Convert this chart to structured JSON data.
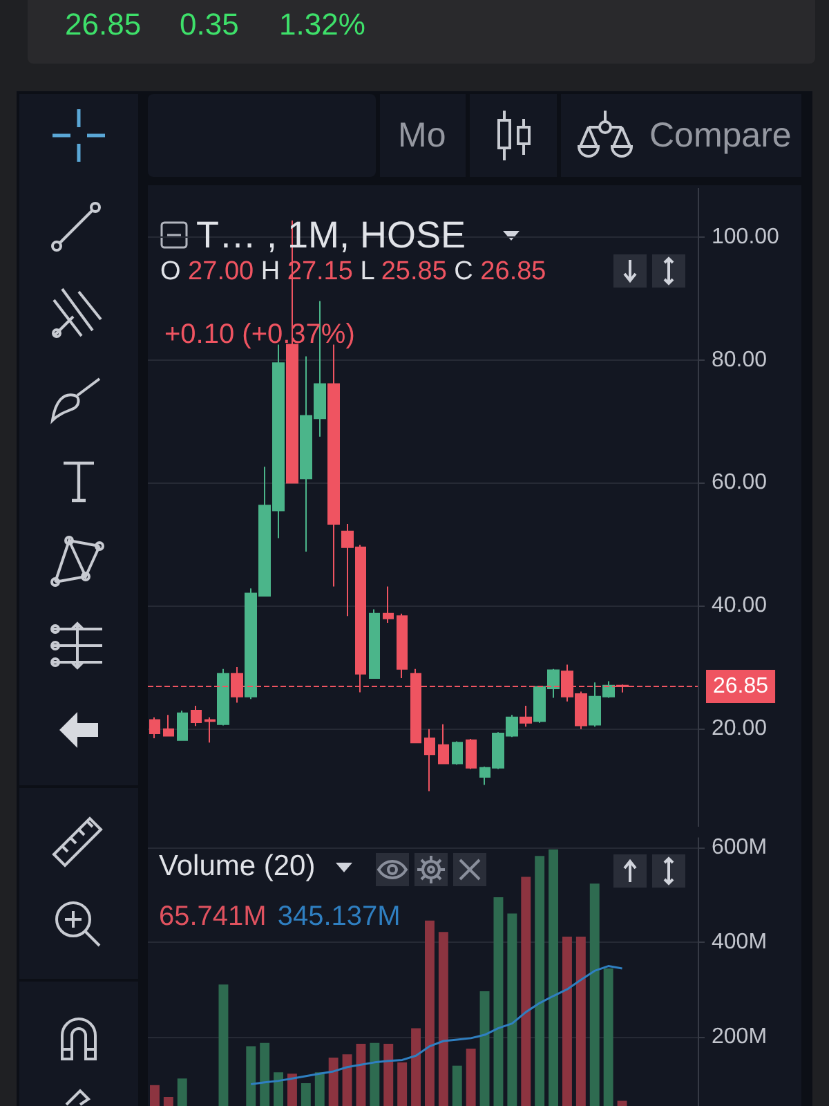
{
  "chart_data": [
    {
      "type": "candlestick",
      "title": "T… , 1M, HOSE",
      "subtitle": "O 27.00 H 27.15 L 25.85 C 26.85",
      "annotations": [
        "26.85",
        "0.35",
        "1.32%",
        "Mo",
        "Compare",
        "+0.10 (+0.37%)"
      ],
      "categories": [
        null,
        null,
        null,
        null,
        null,
        null,
        null,
        null,
        null,
        null,
        null,
        null,
        null,
        null,
        null,
        null,
        null,
        null,
        null,
        null,
        null,
        null,
        null,
        null,
        null,
        null,
        null,
        null,
        null,
        null,
        null,
        null,
        null,
        null,
        null,
        null,
        null,
        null,
        null,
        null
      ],
      "ohlc": [
        [
          21.4,
          21.8,
          18.4,
          19.2
        ],
        [
          19.9,
          22.2,
          18.7,
          18.8
        ],
        [
          18.1,
          22.9,
          18.1,
          22.5
        ],
        [
          22.9,
          23.7,
          20.4,
          21.0
        ],
        [
          21.4,
          21.8,
          17.7,
          21.2
        ],
        [
          20.7,
          29.7,
          20.5,
          28.9
        ],
        [
          28.9,
          30.0,
          24.2,
          25.2
        ],
        [
          25.2,
          42.8,
          24.8,
          42.0
        ],
        [
          41.6,
          62.6,
          41.6,
          56.3
        ],
        [
          55.5,
          82.5,
          51.0,
          79.5
        ],
        [
          82.5,
          102.7,
          60.0,
          60.0
        ],
        [
          60.7,
          80.6,
          48.8,
          70.9
        ],
        [
          70.5,
          89.6,
          67.5,
          76.1
        ],
        [
          76.1,
          82.5,
          43.1,
          53.3
        ],
        [
          52.1,
          53.3,
          38.3,
          49.5
        ],
        [
          49.5,
          49.9,
          25.9,
          28.9
        ],
        [
          28.2,
          39.4,
          28.2,
          38.7
        ],
        [
          38.7,
          43.1,
          37.2,
          37.9
        ],
        [
          38.3,
          38.7,
          28.2,
          29.7
        ],
        [
          28.9,
          29.7,
          17.7,
          17.7
        ],
        [
          18.4,
          19.9,
          9.8,
          15.8
        ],
        [
          17.3,
          20.7,
          14.3,
          14.3
        ],
        [
          14.3,
          17.9,
          14.1,
          17.7
        ],
        [
          18.1,
          18.3,
          13.4,
          13.6
        ],
        [
          12.1,
          13.8,
          10.8,
          13.6
        ],
        [
          13.6,
          19.4,
          13.4,
          19.2
        ],
        [
          18.8,
          22.2,
          18.6,
          21.8
        ],
        [
          21.8,
          23.7,
          20.3,
          20.9
        ],
        [
          21.2,
          26.9,
          20.9,
          26.8
        ],
        [
          26.5,
          29.7,
          25.0,
          29.5
        ],
        [
          29.3,
          30.4,
          24.4,
          25.2
        ],
        [
          25.6,
          26.0,
          19.9,
          20.5
        ],
        [
          20.6,
          27.5,
          20.3,
          25.2
        ],
        [
          25.2,
          27.7,
          25.0,
          27.0
        ],
        [
          27.0,
          27.15,
          25.85,
          26.85
        ],
        null,
        null,
        null,
        null,
        null
      ],
      "colors": [
        "#ef5461",
        "#ef5461",
        "#4bb58a",
        "#ef5461",
        "#ef5461",
        "#4bb58a",
        "#ef5461",
        "#4bb58a",
        "#4bb58a",
        "#4bb58a",
        "#ef5461",
        "#4bb58a",
        "#4bb58a",
        "#ef5461",
        "#ef5461",
        "#ef5461",
        "#4bb58a",
        "#ef5461",
        "#ef5461",
        "#ef5461",
        "#ef5461",
        "#ef5461",
        "#4bb58a",
        "#ef5461",
        "#4bb58a",
        "#4bb58a",
        "#4bb58a",
        "#ef5461",
        "#4bb58a",
        "#4bb58a",
        "#ef5461",
        "#ef5461",
        "#4bb58a",
        "#4bb58a",
        "#ef5461",
        null,
        null,
        null,
        null,
        null
      ],
      "ylim": [
        4,
        108
      ],
      "yticks": [
        {
          "value": 20,
          "label": "20.00"
        },
        {
          "value": 40,
          "label": "40.00"
        },
        {
          "value": 60,
          "label": "60.00"
        },
        {
          "value": 80,
          "label": "80.00"
        },
        {
          "value": 100,
          "label": "100.00"
        }
      ],
      "ref_lines": [
        {
          "axis": "y",
          "value": 26.85,
          "label": "26.85",
          "color": "#ef5461",
          "line_style": "dashed"
        }
      ],
      "grid": "y",
      "tick_labels": "y"
    },
    {
      "type": "bar",
      "title": "Volume (20)",
      "annotations": [
        "65.741M",
        "345.137M"
      ],
      "categories": [
        null,
        null,
        null,
        null,
        null,
        null,
        null,
        null,
        null,
        null,
        null,
        null,
        null,
        null,
        null,
        null,
        null,
        null,
        null,
        null,
        null,
        null,
        null,
        null,
        null,
        null,
        null,
        null,
        null,
        null,
        null,
        null,
        null,
        null,
        null,
        null,
        null,
        null,
        null,
        null
      ],
      "series": [
        {
          "type": "bar",
          "values": [
            99,
            74,
            113,
            null,
            null,
            311,
            null,
            181,
            188,
            126,
            123,
            103,
            126,
            157,
            164,
            186,
            188,
            186,
            147,
            219,
            446,
            422,
            140,
            176,
            297,
            495,
            461,
            538,
            582,
            596,
            412,
            412,
            524,
            345,
            66,
            null,
            null,
            null,
            null,
            null
          ],
          "colors": [
            "#8c3440",
            "#8c3440",
            "#2e6b50",
            null,
            null,
            "#2e6b50",
            null,
            "#2e6b50",
            "#2e6b50",
            "#2e6b50",
            "#8c3440",
            "#2e6b50",
            "#2e6b50",
            "#8c3440",
            "#8c3440",
            "#8c3440",
            "#2e6b50",
            "#8c3440",
            "#8c3440",
            "#8c3440",
            "#8c3440",
            "#8c3440",
            "#2e6b50",
            "#8c3440",
            "#2e6b50",
            "#2e6b50",
            "#2e6b50",
            "#8c3440",
            "#2e6b50",
            "#2e6b50",
            "#8c3440",
            "#8c3440",
            "#2e6b50",
            "#2e6b50",
            "#8c3440",
            null,
            null,
            null,
            null,
            null
          ]
        },
        {
          "type": "line",
          "color": "#2f7fc1",
          "values": [
            null,
            null,
            null,
            null,
            null,
            null,
            null,
            101,
            105,
            108,
            113,
            118,
            123,
            128,
            137,
            142,
            147,
            150,
            152,
            161,
            181,
            192,
            195,
            198,
            205,
            219,
            229,
            253,
            272,
            287,
            301,
            321,
            340,
            350,
            345,
            null,
            null,
            null,
            null,
            null
          ]
        }
      ],
      "ylim": [
        55,
        620
      ],
      "yticks": [
        {
          "value": 200,
          "label": "200M"
        },
        {
          "value": 400,
          "label": "400M"
        },
        {
          "value": 600,
          "label": "600M"
        }
      ],
      "marker": "none",
      "grid": "y",
      "tick_labels": "y"
    }
  ]
}
